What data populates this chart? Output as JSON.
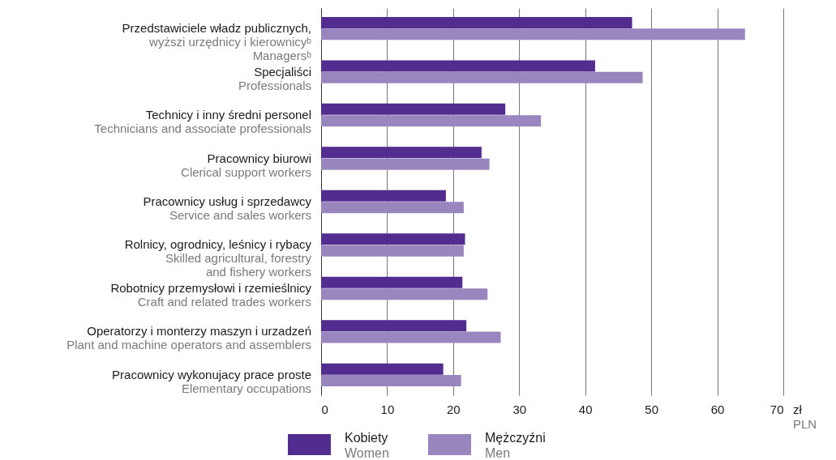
{
  "chart_data": {
    "type": "bar",
    "orientation": "horizontal",
    "categories": [
      "Przedstawiciele władz publicznych,\nwyższi urzędnicy i kierownicyᵇ\nManagersᵇ",
      "Specjaliści\nProfessionals",
      "Technicy i inny średni personel\nTechnicians and associate professionals",
      "Pracownicy biurowi\nClerical support workers",
      "Pracownicy usług i sprzedawcy\nService and sales workers",
      "Rolnicy, ogrodnicy, leśnicy i rybacy\nSkilled agricultural, forestry\nand fishery workers",
      "Robotnicy przemysłowi i rzemieślnicy\nCraft and related trades workers",
      "Operatorzy i monterzy maszyn i urzadzeń\nPlant and machine operators and assemblers",
      "Pracownicy wykonujacy prace proste\nElementary occupations"
    ],
    "series": [
      {
        "name": "Kobiety\nWomen",
        "color": "#522d8f",
        "values": [
          47.1,
          41.5,
          27.9,
          24.3,
          18.9,
          21.8,
          21.4,
          22.0,
          18.5
        ]
      },
      {
        "name": "Mężczyźni\nMen",
        "color": "#9a86bf",
        "values": [
          64.2,
          48.7,
          33.3,
          25.5,
          21.6,
          21.6,
          25.2,
          27.2,
          21.2
        ]
      }
    ],
    "xlabel": "zł\nPLN",
    "xlim": [
      0,
      70
    ],
    "xticks": [
      0,
      10,
      20,
      30,
      40,
      50,
      60,
      70
    ],
    "grid": "x",
    "legend": "bottom"
  }
}
